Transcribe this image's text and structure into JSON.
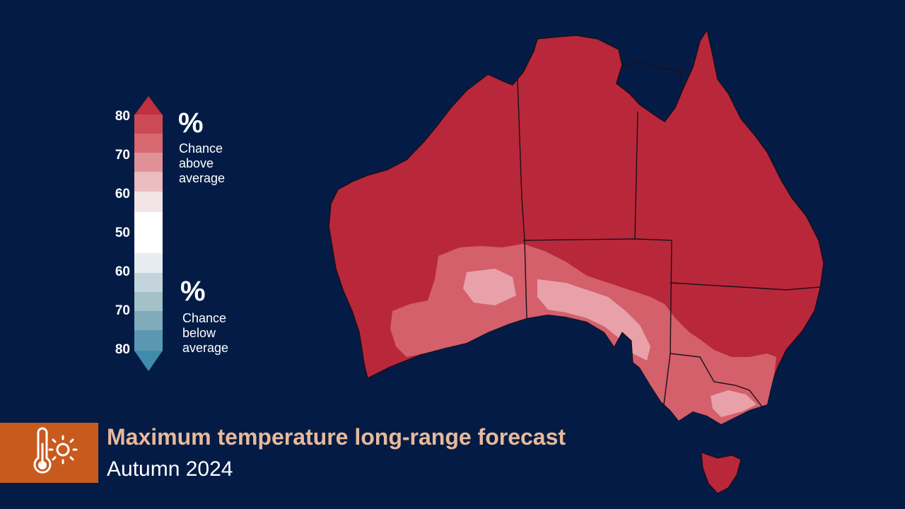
{
  "legend": {
    "tick_labels": [
      "80",
      "70",
      "60",
      "50",
      "60",
      "70",
      "80"
    ],
    "above": {
      "symbol": "%",
      "text": "Chance\nabove\naverage"
    },
    "below": {
      "symbol": "%",
      "text": "Chance\nbelow\naverage"
    },
    "colors": {
      "red_scale": [
        "#c1303e",
        "#cc4a54",
        "#d6686f",
        "#e09197",
        "#ebbcc0",
        "#f1e5e8"
      ],
      "neutral": "#ffffff",
      "blue_scale": [
        "#e6ecf0",
        "#c4d4dd",
        "#a4c0c9",
        "#80abbb",
        "#5a98b1",
        "#3f8bac"
      ]
    }
  },
  "map": {
    "region": "Australia",
    "dominant_category": "80% chance above average",
    "colors": {
      "dominant": "#b8283a",
      "lighter": "#d4606b",
      "lightest": "#e8a1a8"
    }
  },
  "banner": {
    "icon": "thermometer-sun-icon",
    "title": "Maximum temperature long-range forecast",
    "subtitle": "Autumn 2024",
    "colors": {
      "icon_box": "#c85a1e",
      "title": "#e8b99a"
    }
  }
}
